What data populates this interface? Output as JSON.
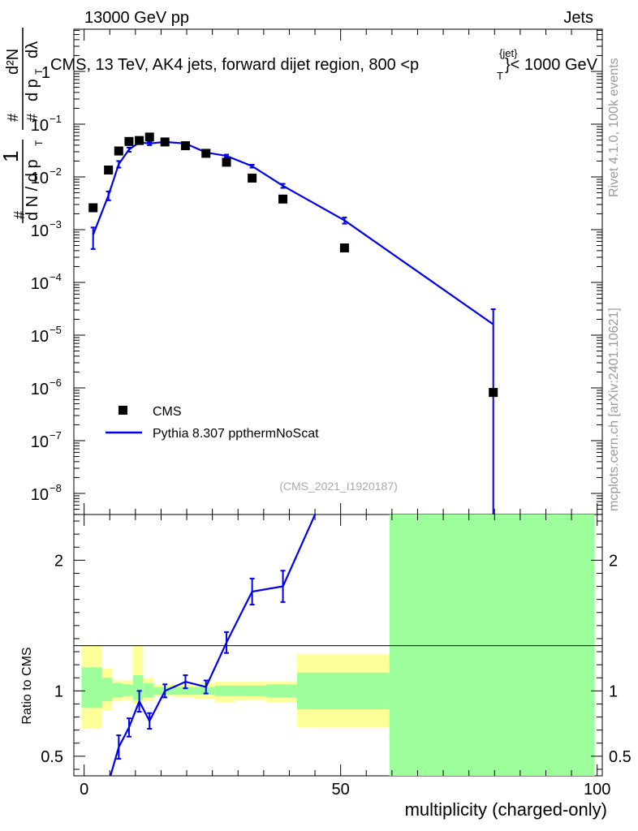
{
  "header": {
    "left": "13000 GeV pp",
    "right": "Jets",
    "title": "CMS, 13 TeV, AK4 jets, forward dijet region, 800 <p",
    "title_sup": "{jet}",
    "title_sub": "T",
    "title_end": "}< 1000 GeV"
  },
  "side": {
    "rivet": "Rivet 4.1.0,  100k events",
    "mcplots": "mcplots.cern.ch [arXiv:2401.10621]"
  },
  "watermark": "(CMS_2021_I1920187)",
  "legend": {
    "data_label": "CMS",
    "mc_label": "Pythia 8.307 ppthermNoScat"
  },
  "colors": {
    "mc": "#0000ee",
    "band_inner": "#9cff9c",
    "band_outer": "#ffff99",
    "data": "#000000"
  },
  "chart_data": {
    "type": "scatter",
    "xlabel": "multiplicity (charged-only)",
    "ylabel_main": "1/dN/dp_T · d²N/dp_T dλ",
    "ylabel_ratio": "Ratio to CMS",
    "xlim": [
      -2,
      101
    ],
    "ylim_main_log10": [
      -8.4,
      0.8
    ],
    "ylim_ratio": [
      0.35,
      2.35
    ],
    "x_ticks": [
      "0",
      "50",
      "100"
    ],
    "x_tick_values": [
      0,
      50,
      100
    ],
    "y_main_ticks": [
      {
        "exp": 0,
        "label": "1"
      },
      {
        "exp": -1,
        "label": "10",
        "sup": "−1"
      },
      {
        "exp": -2,
        "label": "10",
        "sup": "−2"
      },
      {
        "exp": -3,
        "label": "10",
        "sup": "−3"
      },
      {
        "exp": -4,
        "label": "10",
        "sup": "−4"
      },
      {
        "exp": -5,
        "label": "10",
        "sup": "−5"
      },
      {
        "exp": -6,
        "label": "10",
        "sup": "−6"
      },
      {
        "exp": -7,
        "label": "10",
        "sup": "−7"
      },
      {
        "exp": -8,
        "label": "10",
        "sup": "−8"
      }
    ],
    "y_ratio_ticks": [
      {
        "v": 0.5,
        "label": "0.5"
      },
      {
        "v": 1,
        "label": "1"
      },
      {
        "v": 2,
        "label": "2"
      }
    ],
    "data": {
      "name": "CMS",
      "x": [
        1.75,
        4.75,
        6.75,
        8.75,
        10.75,
        12.75,
        15.75,
        19.75,
        23.75,
        27.75,
        32.75,
        38.75,
        50.75,
        79.75
      ],
      "y": [
        0.0026,
        0.0135,
        0.031,
        0.047,
        0.049,
        0.057,
        0.046,
        0.039,
        0.028,
        0.019,
        0.0095,
        0.0038,
        0.00045,
        8.2e-07
      ]
    },
    "mc": {
      "name": "Pythia 8.307 ppthermNoScat",
      "x": [
        1.75,
        4.75,
        6.75,
        8.75,
        10.75,
        12.75,
        15.75,
        19.75,
        23.75,
        27.75,
        32.75,
        38.75,
        50.75,
        79.75
      ],
      "y": [
        0.0008,
        0.0045,
        0.0175,
        0.033,
        0.045,
        0.043,
        0.046,
        0.043,
        0.029,
        0.025,
        0.016,
        0.0068,
        0.0015,
        1.6e-05
      ],
      "err_lo": [
        0.00037,
        0.0009,
        0.0025,
        0.003,
        0.003,
        0.003,
        0.003,
        0.002,
        0.0015,
        0.0015,
        0.001,
        0.0006,
        0.0002,
        1.6e-05
      ],
      "err_hi": [
        0.0003,
        0.0008,
        0.0025,
        0.003,
        0.003,
        0.003,
        0.003,
        0.002,
        0.0015,
        0.0015,
        0.001,
        0.0006,
        0.0002,
        1.5e-05
      ]
    },
    "ratio": {
      "x": [
        5,
        6.75,
        8.75,
        10.75,
        12.75,
        15.75,
        19.75,
        23.75,
        27.75,
        32.75,
        38.75,
        45
      ],
      "y": [
        0.33,
        0.57,
        0.72,
        0.92,
        0.77,
        1.0,
        1.07,
        1.03,
        1.37,
        1.76,
        1.8,
        2.35
      ],
      "err": [
        0,
        0.09,
        0.07,
        0.08,
        0.06,
        0.05,
        0.05,
        0.05,
        0.08,
        0.1,
        0.12,
        0
      ]
    },
    "bands": [
      {
        "x0": -0.5,
        "x1": 3.5,
        "in_lo": 0.87,
        "in_hi": 1.18,
        "out_lo": 0.71,
        "out_hi": 1.35
      },
      {
        "x0": 3.5,
        "x1": 5.5,
        "in_lo": 0.92,
        "in_hi": 1.1,
        "out_lo": 0.85,
        "out_hi": 1.17
      },
      {
        "x0": 5.5,
        "x1": 7.5,
        "in_lo": 0.95,
        "in_hi": 1.06,
        "out_lo": 0.92,
        "out_hi": 1.08
      },
      {
        "x0": 7.5,
        "x1": 9.5,
        "in_lo": 0.96,
        "in_hi": 1.05,
        "out_lo": 0.93,
        "out_hi": 1.08
      },
      {
        "x0": 9.5,
        "x1": 11.5,
        "in_lo": 0.93,
        "in_hi": 1.12,
        "out_lo": 0.9,
        "out_hi": 1.35
      },
      {
        "x0": 11.5,
        "x1": 13.5,
        "in_lo": 0.95,
        "in_hi": 1.06,
        "out_lo": 0.92,
        "out_hi": 1.1
      },
      {
        "x0": 13.5,
        "x1": 17.5,
        "in_lo": 0.97,
        "in_hi": 1.03,
        "out_lo": 0.96,
        "out_hi": 1.05
      },
      {
        "x0": 17.5,
        "x1": 21.5,
        "in_lo": 0.97,
        "in_hi": 1.03,
        "out_lo": 0.95,
        "out_hi": 1.05
      },
      {
        "x0": 21.5,
        "x1": 25.5,
        "in_lo": 0.97,
        "in_hi": 1.03,
        "out_lo": 0.94,
        "out_hi": 1.06
      },
      {
        "x0": 25.5,
        "x1": 29.5,
        "in_lo": 0.96,
        "in_hi": 1.04,
        "out_lo": 0.91,
        "out_hi": 1.07
      },
      {
        "x0": 29.5,
        "x1": 35.5,
        "in_lo": 0.96,
        "in_hi": 1.04,
        "out_lo": 0.93,
        "out_hi": 1.07
      },
      {
        "x0": 35.5,
        "x1": 41.5,
        "in_lo": 0.95,
        "in_hi": 1.05,
        "out_lo": 0.91,
        "out_hi": 1.07
      },
      {
        "x0": 41.5,
        "x1": 59.5,
        "in_lo": 0.86,
        "in_hi": 1.14,
        "out_lo": 0.72,
        "out_hi": 1.28
      },
      {
        "x0": 59.5,
        "x1": 99.5,
        "in_lo": 0.35,
        "in_hi": 2.35,
        "out_lo": 0.35,
        "out_hi": 2.35
      }
    ]
  }
}
